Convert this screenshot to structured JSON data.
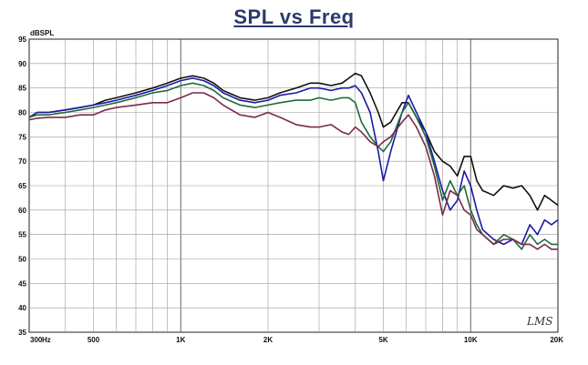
{
  "chart_data": {
    "type": "line",
    "title": "SPL vs Freq",
    "ylabel": "dBSPL",
    "x_scale": "log",
    "xlim": [
      300,
      20000
    ],
    "ylim": [
      35,
      95
    ],
    "grid": true,
    "x_tick_labels": [
      {
        "value": 300,
        "label": "300"
      },
      {
        "value": 500,
        "label": "500"
      },
      {
        "value": 1000,
        "label": "1K"
      },
      {
        "value": 2000,
        "label": "2K"
      },
      {
        "value": 5000,
        "label": "5K"
      },
      {
        "value": 10000,
        "label": "10K"
      },
      {
        "value": 20000,
        "label": "20K"
      }
    ],
    "x_unit": "Hz",
    "y_ticks": [
      35,
      40,
      45,
      50,
      55,
      60,
      65,
      70,
      75,
      80,
      85,
      90,
      95
    ],
    "series": [
      {
        "color": "#111111",
        "values": [
          [
            300,
            79
          ],
          [
            320,
            80
          ],
          [
            350,
            80
          ],
          [
            400,
            80.5
          ],
          [
            450,
            81
          ],
          [
            500,
            81.5
          ],
          [
            550,
            82.5
          ],
          [
            600,
            83
          ],
          [
            700,
            84
          ],
          [
            800,
            85
          ],
          [
            900,
            86
          ],
          [
            1000,
            87
          ],
          [
            1100,
            87.5
          ],
          [
            1200,
            87
          ],
          [
            1300,
            86
          ],
          [
            1400,
            84.5
          ],
          [
            1600,
            83
          ],
          [
            1800,
            82.5
          ],
          [
            2000,
            83
          ],
          [
            2200,
            84
          ],
          [
            2500,
            85
          ],
          [
            2800,
            86
          ],
          [
            3000,
            86
          ],
          [
            3300,
            85.5
          ],
          [
            3600,
            86
          ],
          [
            3800,
            87
          ],
          [
            4000,
            88
          ],
          [
            4200,
            87.5
          ],
          [
            4500,
            84
          ],
          [
            4800,
            80
          ],
          [
            5000,
            77
          ],
          [
            5300,
            78
          ],
          [
            5800,
            82
          ],
          [
            6100,
            82
          ],
          [
            6500,
            79
          ],
          [
            7000,
            76
          ],
          [
            7500,
            72
          ],
          [
            8000,
            70
          ],
          [
            8500,
            69
          ],
          [
            9000,
            67
          ],
          [
            9500,
            71
          ],
          [
            10000,
            71
          ],
          [
            10500,
            66
          ],
          [
            11000,
            64
          ],
          [
            12000,
            63
          ],
          [
            13000,
            65
          ],
          [
            14000,
            64.5
          ],
          [
            15000,
            65
          ],
          [
            16000,
            63
          ],
          [
            17000,
            60
          ],
          [
            18000,
            63
          ],
          [
            19000,
            62
          ],
          [
            20000,
            61
          ]
        ]
      },
      {
        "color": "#1a1aa6",
        "values": [
          [
            300,
            79
          ],
          [
            320,
            80
          ],
          [
            350,
            80
          ],
          [
            400,
            80.5
          ],
          [
            450,
            81
          ],
          [
            500,
            81.5
          ],
          [
            550,
            82
          ],
          [
            600,
            82.5
          ],
          [
            700,
            83.5
          ],
          [
            800,
            84.5
          ],
          [
            900,
            85.5
          ],
          [
            1000,
            86.5
          ],
          [
            1100,
            87
          ],
          [
            1200,
            86.5
          ],
          [
            1300,
            85.5
          ],
          [
            1400,
            84
          ],
          [
            1600,
            82.5
          ],
          [
            1800,
            82
          ],
          [
            2000,
            82.5
          ],
          [
            2200,
            83.5
          ],
          [
            2500,
            84
          ],
          [
            2800,
            85
          ],
          [
            3000,
            85
          ],
          [
            3300,
            84.5
          ],
          [
            3600,
            85
          ],
          [
            3800,
            85
          ],
          [
            4000,
            85.5
          ],
          [
            4200,
            84
          ],
          [
            4500,
            80
          ],
          [
            4800,
            72
          ],
          [
            5000,
            66
          ],
          [
            5300,
            72
          ],
          [
            5800,
            80
          ],
          [
            6100,
            83.5
          ],
          [
            6500,
            80
          ],
          [
            7000,
            76
          ],
          [
            7500,
            70
          ],
          [
            8000,
            64
          ],
          [
            8500,
            60
          ],
          [
            9000,
            62
          ],
          [
            9500,
            68
          ],
          [
            10000,
            65
          ],
          [
            10500,
            60
          ],
          [
            11000,
            56
          ],
          [
            12000,
            54
          ],
          [
            13000,
            53
          ],
          [
            14000,
            54
          ],
          [
            15000,
            53
          ],
          [
            16000,
            57
          ],
          [
            17000,
            55
          ],
          [
            18000,
            58
          ],
          [
            19000,
            57
          ],
          [
            20000,
            58
          ]
        ]
      },
      {
        "color": "#1d6b3a",
        "values": [
          [
            300,
            79
          ],
          [
            320,
            79.5
          ],
          [
            350,
            79.5
          ],
          [
            400,
            80
          ],
          [
            450,
            80.5
          ],
          [
            500,
            81
          ],
          [
            550,
            81.5
          ],
          [
            600,
            82
          ],
          [
            700,
            83
          ],
          [
            800,
            84
          ],
          [
            900,
            84.5
          ],
          [
            1000,
            85.5
          ],
          [
            1100,
            86
          ],
          [
            1200,
            85.5
          ],
          [
            1300,
            84.5
          ],
          [
            1400,
            83
          ],
          [
            1600,
            81.5
          ],
          [
            1800,
            81
          ],
          [
            2000,
            81.5
          ],
          [
            2200,
            82
          ],
          [
            2500,
            82.5
          ],
          [
            2800,
            82.5
          ],
          [
            3000,
            83
          ],
          [
            3300,
            82.5
          ],
          [
            3600,
            83
          ],
          [
            3800,
            83
          ],
          [
            4000,
            82
          ],
          [
            4200,
            78
          ],
          [
            4500,
            75
          ],
          [
            4800,
            73
          ],
          [
            5000,
            72
          ],
          [
            5300,
            74
          ],
          [
            5800,
            80
          ],
          [
            6100,
            82
          ],
          [
            6500,
            79
          ],
          [
            7000,
            75
          ],
          [
            7500,
            69
          ],
          [
            8000,
            62
          ],
          [
            8500,
            66
          ],
          [
            9000,
            63
          ],
          [
            9500,
            65
          ],
          [
            10000,
            60
          ],
          [
            10500,
            57
          ],
          [
            11000,
            55
          ],
          [
            12000,
            53
          ],
          [
            13000,
            55
          ],
          [
            14000,
            54
          ],
          [
            15000,
            52
          ],
          [
            16000,
            55
          ],
          [
            17000,
            53
          ],
          [
            18000,
            54
          ],
          [
            19000,
            53
          ],
          [
            20000,
            53
          ]
        ]
      },
      {
        "color": "#7a2a4a",
        "values": [
          [
            300,
            78.5
          ],
          [
            320,
            78.8
          ],
          [
            350,
            79
          ],
          [
            400,
            79
          ],
          [
            450,
            79.5
          ],
          [
            500,
            79.5
          ],
          [
            550,
            80.5
          ],
          [
            600,
            81
          ],
          [
            700,
            81.5
          ],
          [
            800,
            82
          ],
          [
            900,
            82
          ],
          [
            1000,
            83
          ],
          [
            1100,
            84
          ],
          [
            1200,
            84
          ],
          [
            1300,
            83
          ],
          [
            1400,
            81.5
          ],
          [
            1600,
            79.5
          ],
          [
            1800,
            79
          ],
          [
            2000,
            80
          ],
          [
            2200,
            79
          ],
          [
            2500,
            77.5
          ],
          [
            2800,
            77
          ],
          [
            3000,
            77
          ],
          [
            3300,
            77.5
          ],
          [
            3600,
            76
          ],
          [
            3800,
            75.5
          ],
          [
            4000,
            77
          ],
          [
            4200,
            76
          ],
          [
            4500,
            74
          ],
          [
            4800,
            73
          ],
          [
            5000,
            74
          ],
          [
            5300,
            75
          ],
          [
            5800,
            78
          ],
          [
            6100,
            79.5
          ],
          [
            6500,
            77
          ],
          [
            7000,
            73
          ],
          [
            7500,
            67
          ],
          [
            8000,
            59
          ],
          [
            8500,
            64
          ],
          [
            9000,
            63
          ],
          [
            9500,
            60
          ],
          [
            10000,
            59
          ],
          [
            10500,
            56
          ],
          [
            11000,
            55
          ],
          [
            12000,
            53
          ],
          [
            13000,
            54
          ],
          [
            14000,
            54
          ],
          [
            15000,
            53
          ],
          [
            16000,
            53
          ],
          [
            17000,
            52
          ],
          [
            18000,
            53
          ],
          [
            19000,
            52
          ],
          [
            20000,
            52
          ]
        ]
      }
    ],
    "watermark": "LMS"
  }
}
